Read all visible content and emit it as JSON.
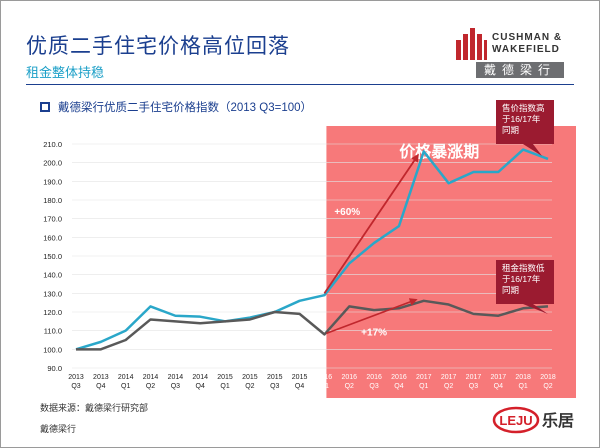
{
  "header": {
    "title": "优质二手住宅价格高位回落",
    "subtitle": "租金整体持稳"
  },
  "logo": {
    "line1": "CUSHMAN &",
    "line2": "WAKEFIELD",
    "cn": "戴德梁行"
  },
  "legend_label": "戴德梁行优质二手住宅价格指数（2013 Q3=100）",
  "colors": {
    "price_line": "#2aa7c9",
    "rent_line": "#595959",
    "highlight": "#f7797a",
    "callout": "#9b1b30",
    "title_blue": "#1b3f8f"
  },
  "chart_data": {
    "type": "line",
    "categories": [
      [
        "2013",
        "Q3"
      ],
      [
        "2013",
        "Q4"
      ],
      [
        "2014",
        "Q1"
      ],
      [
        "2014",
        "Q2"
      ],
      [
        "2014",
        "Q3"
      ],
      [
        "2014",
        "Q4"
      ],
      [
        "2015",
        "Q1"
      ],
      [
        "2015",
        "Q2"
      ],
      [
        "2015",
        "Q3"
      ],
      [
        "2015",
        "Q4"
      ],
      [
        "2016",
        "Q1"
      ],
      [
        "2016",
        "Q2"
      ],
      [
        "2016",
        "Q3"
      ],
      [
        "2016",
        "Q4"
      ],
      [
        "2017",
        "Q1"
      ],
      [
        "2017",
        "Q2"
      ],
      [
        "2017",
        "Q3"
      ],
      [
        "2017",
        "Q4"
      ],
      [
        "2018",
        "Q1"
      ],
      [
        "2018",
        "Q2"
      ]
    ],
    "series": [
      {
        "name": "price_index",
        "values": [
          100,
          104,
          110,
          123,
          118,
          117.5,
          115,
          117,
          120,
          126,
          129,
          146,
          157,
          166,
          206,
          189,
          195,
          195,
          207,
          202
        ]
      },
      {
        "name": "rent_index",
        "values": [
          100,
          100,
          105,
          116,
          115,
          114,
          115,
          116,
          120,
          119,
          108,
          123,
          121,
          122,
          126,
          124,
          119,
          118,
          122,
          123
        ]
      }
    ],
    "ylim": [
      90,
      210
    ],
    "yticks": [
      "90.0",
      "100.0",
      "110.0",
      "120.0",
      "130.0",
      "140.0",
      "150.0",
      "160.0",
      "170.0",
      "180.0",
      "190.0",
      "200.0",
      "210.0"
    ],
    "highlight_region": {
      "from_index": 10,
      "to_index": 19,
      "label": "价格暴涨期"
    },
    "annotations": {
      "price_growth": "+60%",
      "rent_growth": "+17%",
      "price_callout": [
        "售价指数高",
        "于16/17年",
        "同期"
      ],
      "rent_callout": [
        "租金指数低",
        "于16/17年",
        "同期"
      ]
    }
  },
  "footer": {
    "source": "数据来源：戴德梁行研究部",
    "company": "戴德梁行",
    "brand": "乐居",
    "brand_logo": "LEJU"
  }
}
